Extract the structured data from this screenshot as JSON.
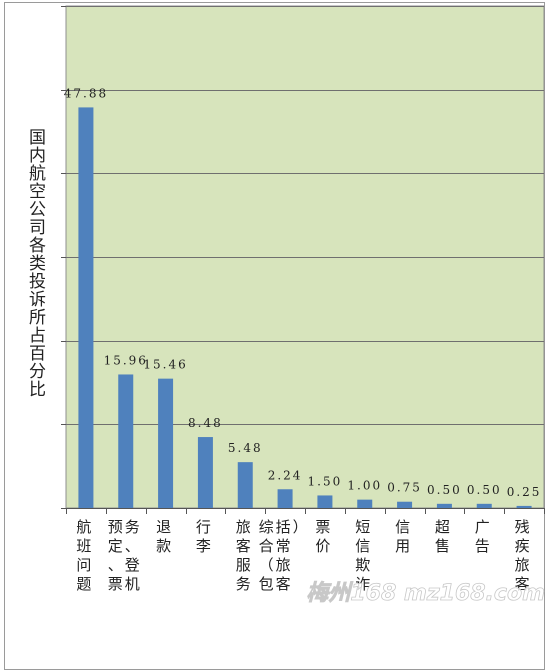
{
  "chart_data": {
    "type": "bar",
    "title": "",
    "xlabel": "",
    "ylabel": "国内航空公司各类投诉所占百分比",
    "ylim": [
      0,
      60
    ],
    "grid": true,
    "legend": "none",
    "colors": {
      "plot_bg": "#d7e4bc",
      "bar": "#4f81bd",
      "grid": "#6f6f6f"
    },
    "categories": [
      "航班问题",
      "预定、票务、登机",
      "退款",
      "行李",
      "旅客服务",
      "综合（包括常旅客）",
      "票价",
      "短信欺诈",
      "信用",
      "超售",
      "广告",
      "残疾旅客"
    ],
    "values": [
      47.88,
      15.96,
      15.46,
      8.48,
      5.48,
      2.24,
      1.5,
      1.0,
      0.75,
      0.5,
      0.5,
      0.25
    ],
    "data_labels": [
      "47.88",
      "15.96",
      "15.46",
      "8.48",
      "5.48",
      "2.24",
      "1.50",
      "1.00",
      "0.75",
      "0.50",
      "0.50",
      "0.25"
    ]
  },
  "watermark": {
    "text": "梅州168 mz168.com"
  }
}
